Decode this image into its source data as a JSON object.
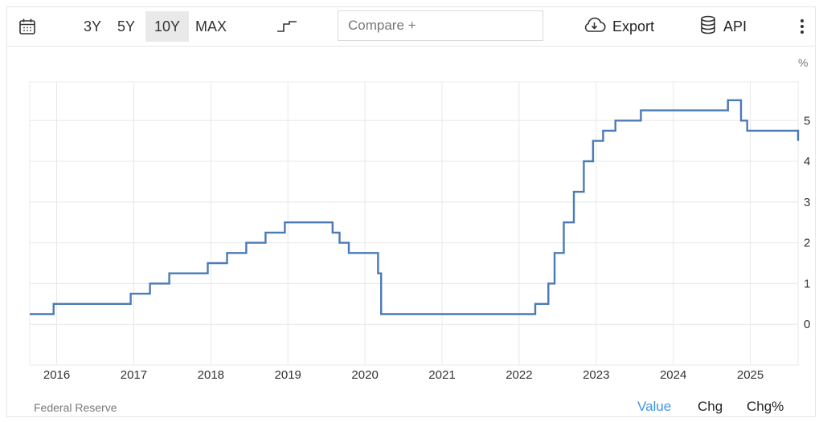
{
  "toolbar": {
    "ranges": [
      "3Y",
      "5Y",
      "10Y",
      "MAX"
    ],
    "active_range": "10Y",
    "compare_placeholder": "Compare +",
    "export_label": "Export",
    "api_label": "API"
  },
  "footer": {
    "source": "Federal Reserve",
    "tabs": [
      "Value",
      "Chg",
      "Chg%"
    ],
    "active_tab": "Value"
  },
  "colors": {
    "line": "#4a7ab7",
    "grid": "#e8e8e8",
    "active_tab": "#3d95e6"
  },
  "chart_data": {
    "type": "line",
    "step": true,
    "unit_label": "%",
    "xlim": [
      2015.65,
      2025.62
    ],
    "ylim": [
      -1,
      5.95
    ],
    "yticks": [
      0,
      1,
      2,
      3,
      4,
      5
    ],
    "xticks": [
      2016,
      2017,
      2018,
      2019,
      2020,
      2021,
      2022,
      2023,
      2024,
      2025
    ],
    "grid": true,
    "series": [
      {
        "x": [
          2015.65,
          2015.96,
          2016.96,
          2017.21,
          2017.46,
          2017.96,
          2018.21,
          2018.46,
          2018.71,
          2018.96,
          2019.58,
          2019.67,
          2019.79,
          2020.17,
          2020.21,
          2022.21,
          2022.38,
          2022.46,
          2022.58,
          2022.71,
          2022.84,
          2022.96,
          2023.09,
          2023.25,
          2023.58,
          2024.71,
          2024.88,
          2024.96,
          2025.62
        ],
        "y": [
          0.25,
          0.5,
          0.75,
          1.0,
          1.25,
          1.5,
          1.75,
          2.0,
          2.25,
          2.5,
          2.25,
          2.0,
          1.75,
          1.25,
          0.25,
          0.5,
          1.0,
          1.75,
          2.5,
          3.25,
          4.0,
          4.5,
          4.75,
          5.0,
          5.25,
          5.5,
          5.0,
          4.75,
          4.5
        ]
      }
    ]
  }
}
